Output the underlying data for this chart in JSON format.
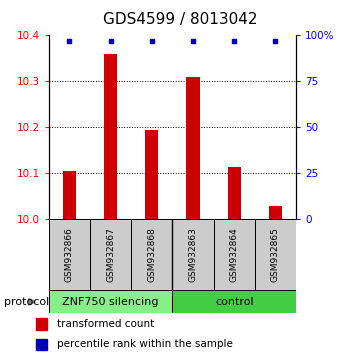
{
  "title": "GDS4599 / 8013042",
  "samples": [
    "GSM932866",
    "GSM932867",
    "GSM932868",
    "GSM932863",
    "GSM932864",
    "GSM932865"
  ],
  "red_values": [
    10.105,
    10.36,
    10.195,
    10.31,
    10.115,
    10.03
  ],
  "blue_values": [
    97,
    97,
    97,
    97,
    97,
    97
  ],
  "ylim_left": [
    10.0,
    10.4
  ],
  "ylim_right": [
    0,
    100
  ],
  "yticks_left": [
    10.0,
    10.1,
    10.2,
    10.3,
    10.4
  ],
  "yticks_right": [
    0,
    25,
    50,
    75,
    100
  ],
  "ytick_labels_right": [
    "0",
    "25",
    "50",
    "75",
    "100%"
  ],
  "bar_color": "#CC0000",
  "dot_color": "#0000BB",
  "group1_label": "ZNF750 silencing",
  "group2_label": "control",
  "group1_color": "#88EE88",
  "group2_color": "#44CC44",
  "sample_box_color": "#CCCCCC",
  "protocol_label": "protocol",
  "legend_red_label": "transformed count",
  "legend_blue_label": "percentile rank within the sample",
  "title_fontsize": 11,
  "tick_fontsize": 7.5,
  "sample_fontsize": 6.5,
  "legend_fontsize": 7.5,
  "proto_fontsize": 8
}
